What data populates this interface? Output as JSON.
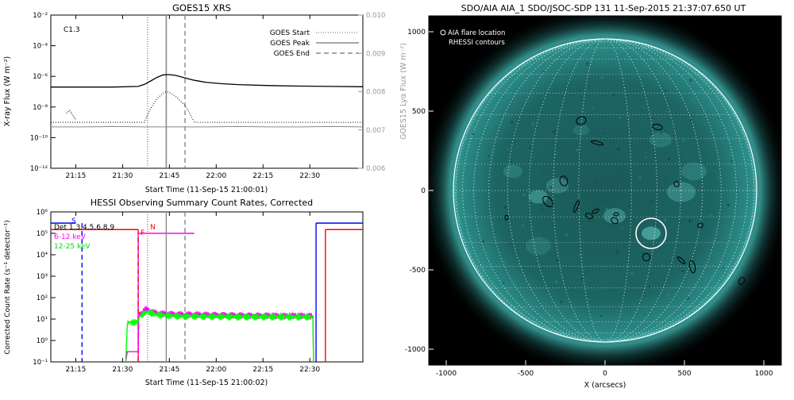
{
  "charts": {
    "goes": {
      "title": "GOES15 XRS",
      "ylabel": "X-ray Flux (W m⁻²)",
      "y2label": "GOES15 Lyα Flux (W m⁻²)",
      "xlabel": "Start Time (11-Sep-15 21:00:01)",
      "annotation": "C1.3",
      "legend": [
        "GOES Start",
        "GOES Peak",
        "GOES End"
      ]
    },
    "hessi": {
      "title": "HESSI Observing Summary Count Rates, Corrected",
      "ylabel": "Corrected Count Rate (s⁻¹ detector⁻¹)",
      "xlabel": "Start Time (11-Sep-15 21:00:02)",
      "detectors_label": "Det 1,3,4,5,6,8,9",
      "legend": [
        "6-12 keV",
        "12-25 keV"
      ],
      "flags": [
        "S",
        "N",
        "F"
      ]
    },
    "aia": {
      "title": "SDO/AIA AIA_1 SDO/JSOC-SDP 131 11-Sep-2015 21:37:07.650 UT",
      "xlabel": "X (arcsecs)",
      "legend": [
        "AIA flare location",
        "RHESSI contours"
      ]
    }
  },
  "chart_data": [
    {
      "type": "line",
      "title": "GOES15 XRS",
      "xlabel": "Start Time (11-Sep-15 21:00:01)",
      "ylabel": "X-ray Flux (W m⁻²)",
      "y2label": "GOES15 Lyα Flux (W m⁻²)",
      "x_unit": "minutes after 21:00",
      "xlim": [
        0,
        100
      ],
      "ylim": [
        1e-12,
        0.01
      ],
      "yscale": "log",
      "y2lim": [
        0.006,
        0.01
      ],
      "x_ticks": [
        "21:15",
        "21:30",
        "21:45",
        "22:00",
        "22:15",
        "22:30"
      ],
      "y_ticks": [
        "10⁻¹²",
        "10⁻¹⁰",
        "10⁻⁸",
        "10⁻⁶",
        "10⁻⁴",
        "10⁻²"
      ],
      "y2_ticks": [
        "0.006",
        "0.007",
        "0.008",
        "0.009",
        "0.010"
      ],
      "annotation": "C1.3",
      "event_lines": [
        {
          "name": "GOES Start",
          "x": 31,
          "style": "dotted"
        },
        {
          "name": "GOES Peak",
          "x": 37,
          "style": "solid"
        },
        {
          "name": "GOES End",
          "x": 43,
          "style": "dashed"
        }
      ],
      "series": [
        {
          "name": "",
          "style": "solid",
          "x": [
            0,
            10,
            20,
            28,
            30,
            32,
            34,
            36,
            38,
            40,
            42,
            44,
            46,
            50,
            55,
            60,
            70,
            80,
            90,
            100
          ],
          "y": [
            2e-07,
            2e-07,
            2e-07,
            2.2e-07,
            3e-07,
            5e-07,
            8.5e-07,
            1.25e-06,
            1.3e-06,
            1.15e-06,
            9e-07,
            7e-07,
            5.5e-07,
            4e-07,
            3.3e-07,
            2.9e-07,
            2.5e-07,
            2.3e-07,
            2.2e-07,
            2.1e-07
          ]
        },
        {
          "name": "",
          "style": "dotted",
          "x": [
            0,
            10,
            20,
            28,
            30,
            31,
            32,
            34,
            36,
            37,
            38,
            40,
            42,
            43,
            44,
            46,
            50,
            60,
            80,
            100
          ],
          "y": [
            1e-09,
            1e-09,
            1e-09,
            1e-09,
            1e-09,
            3e-09,
            8e-09,
            3.5e-08,
            8e-08,
            1e-07,
            9e-08,
            5e-08,
            2e-08,
            1.2e-08,
            6e-09,
            1e-09,
            1e-09,
            1e-09,
            1e-09,
            1e-09
          ]
        },
        {
          "name": "",
          "style": "dotted-short",
          "x": [
            5,
            6,
            7,
            8
          ],
          "y": [
            4e-09,
            6e-09,
            3e-09,
            1.5e-09
          ]
        },
        {
          "name": "",
          "style": "gray",
          "axis": "right",
          "x": [
            0,
            10,
            20,
            30,
            40,
            50,
            60,
            70,
            80,
            90,
            100
          ],
          "y": [
            0.00708,
            0.00708,
            0.00709,
            0.00708,
            0.00708,
            0.00708,
            0.00709,
            0.00708,
            0.00708,
            0.00709,
            0.00708
          ]
        }
      ]
    },
    {
      "type": "line",
      "title": "HESSI Observing Summary Count Rates, Corrected",
      "xlabel": "Start Time (11-Sep-15 21:00:02)",
      "ylabel": "Corrected Count Rate (s⁻¹ detector⁻¹)",
      "x_unit": "minutes after 21:00",
      "xlim": [
        0,
        100
      ],
      "ylim": [
        0.1,
        1000000.0
      ],
      "yscale": "log",
      "x_ticks": [
        "21:15",
        "21:30",
        "21:45",
        "22:00",
        "22:15",
        "22:30"
      ],
      "y_ticks": [
        "10⁻¹",
        "10⁰",
        "10¹",
        "10²",
        "10³",
        "10⁴",
        "10⁵",
        "10⁶"
      ],
      "detectors_label": "Det 1,3,4,5,6,8,9",
      "flags": [
        "S",
        "N",
        "F"
      ],
      "event_lines": [
        {
          "x": 10,
          "style": "dashed",
          "color": "#0000ff"
        },
        {
          "x": 28,
          "style": "dashed",
          "color": "#ff0000"
        },
        {
          "x": 31,
          "style": "dotted",
          "color": "#888888"
        },
        {
          "x": 37,
          "style": "solid",
          "color": "#888888"
        },
        {
          "x": 43,
          "style": "dashed",
          "color": "#888888"
        }
      ],
      "series": [
        {
          "name": "6-12 keV",
          "color": "#ff00ff",
          "x": [
            24,
            24.5,
            28,
            28.2,
            30,
            31,
            32,
            33,
            35,
            38,
            42,
            46,
            50,
            55,
            60,
            65,
            70,
            75,
            78,
            80,
            82,
            84,
            84.2
          ],
          "y": [
            0.1,
            0.3,
            0.3,
            15,
            28,
            30,
            24,
            21,
            19,
            18,
            17,
            17,
            16.5,
            16,
            15.5,
            15,
            15,
            14.5,
            15,
            15,
            14.5,
            14.5,
            0.1
          ]
        },
        {
          "name": "12-25 keV",
          "color": "#00ff00",
          "x": [
            24,
            24.5,
            28,
            28.2,
            30,
            31,
            32,
            33,
            35,
            38,
            42,
            46,
            50,
            55,
            60,
            65,
            70,
            75,
            78,
            80,
            82,
            84,
            84.2
          ],
          "y": [
            0.1,
            7.0,
            7.5,
            12,
            20,
            22,
            20,
            18,
            16,
            15,
            14,
            14,
            13.5,
            13.5,
            13,
            13,
            13,
            13,
            13,
            13,
            13,
            13,
            0.1
          ]
        }
      ],
      "state_bars": [
        {
          "color": "#0000ff",
          "segments": [
            [
              0,
              8,
              300000
            ],
            [
              85,
              100,
              300000
            ]
          ]
        },
        {
          "color": "#ff0000",
          "segments": [
            [
              0,
              28,
              150000
            ],
            [
              88,
              100,
              150000
            ]
          ]
        },
        {
          "color": "#ff00ff",
          "segments": [
            [
              28,
              46,
              100000
            ]
          ]
        }
      ]
    },
    {
      "type": "scatter",
      "title": "SDO/AIA AIA_1 SDO/JSOC-SDP 131 11-Sep-2015 21:37:07.650 UT",
      "xlabel": "X (arcsecs)",
      "ylabel": "",
      "xlim": [
        -1110,
        1110
      ],
      "ylim": [
        -1100,
        1100
      ],
      "x_ticks": [
        -1000,
        -500,
        0,
        500,
        1000
      ],
      "y_ticks": [
        1000,
        500,
        0,
        -500,
        -1000
      ],
      "solar_radius": 955,
      "legend": [
        "AIA flare location",
        "RHESSI contours"
      ],
      "points": [
        {
          "name": "AIA flare location",
          "x": 290,
          "y": -270
        }
      ],
      "contour_centers": [
        {
          "x": 70,
          "y": -150
        },
        {
          "x": 60,
          "y": -190
        },
        {
          "x": -260,
          "y": 60
        },
        {
          "x": -180,
          "y": -100
        },
        {
          "x": 450,
          "y": 40
        },
        {
          "x": 260,
          "y": -420
        },
        {
          "x": 480,
          "y": -440
        },
        {
          "x": 550,
          "y": -480
        },
        {
          "x": -100,
          "y": -160
        },
        {
          "x": -60,
          "y": -130
        },
        {
          "x": 330,
          "y": 400
        },
        {
          "x": -360,
          "y": -70
        },
        {
          "x": -620,
          "y": -170
        },
        {
          "x": 860,
          "y": -570
        },
        {
          "x": -150,
          "y": 440
        },
        {
          "x": -50,
          "y": 300
        },
        {
          "x": 600,
          "y": -220
        }
      ]
    }
  ]
}
